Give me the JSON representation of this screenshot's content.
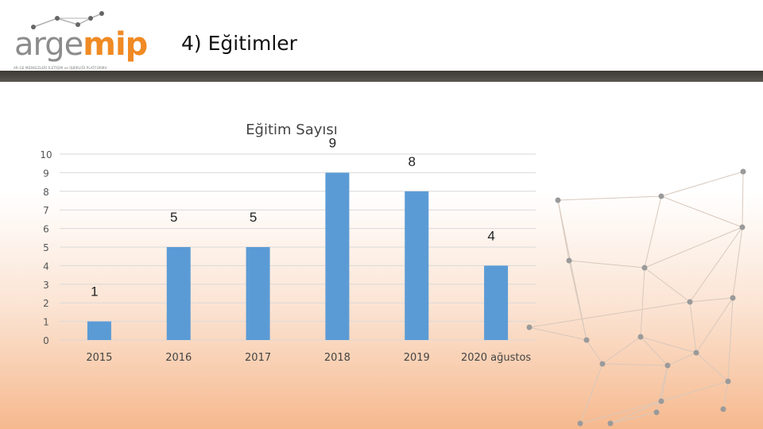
{
  "header": {
    "logo_text_1": "arge",
    "logo_text_2": "mip",
    "logo_tagline": "AR-GE MERKEZLERİ İLETİŞİM ve İŞBİRLİĞİ PLATFORMU",
    "slide_title": "4) Eğitimler"
  },
  "colors": {
    "bar": "#5b9bd5",
    "header_bar": "#4a4743",
    "accent": "#f08a24"
  },
  "icons": [
    "network-dots-icon"
  ],
  "chart_data": {
    "type": "bar",
    "title": "Eğitim Sayısı",
    "categories": [
      "2015",
      "2016",
      "2017",
      "2018",
      "2019",
      "2020 ağustos"
    ],
    "values": [
      1,
      5,
      5,
      9,
      8,
      4
    ],
    "yticks": [
      "0",
      "1",
      "2",
      "3",
      "4",
      "5",
      "6",
      "7",
      "8",
      "9",
      "10"
    ],
    "ylim": [
      0,
      10
    ],
    "grid": true,
    "legend": "none"
  }
}
